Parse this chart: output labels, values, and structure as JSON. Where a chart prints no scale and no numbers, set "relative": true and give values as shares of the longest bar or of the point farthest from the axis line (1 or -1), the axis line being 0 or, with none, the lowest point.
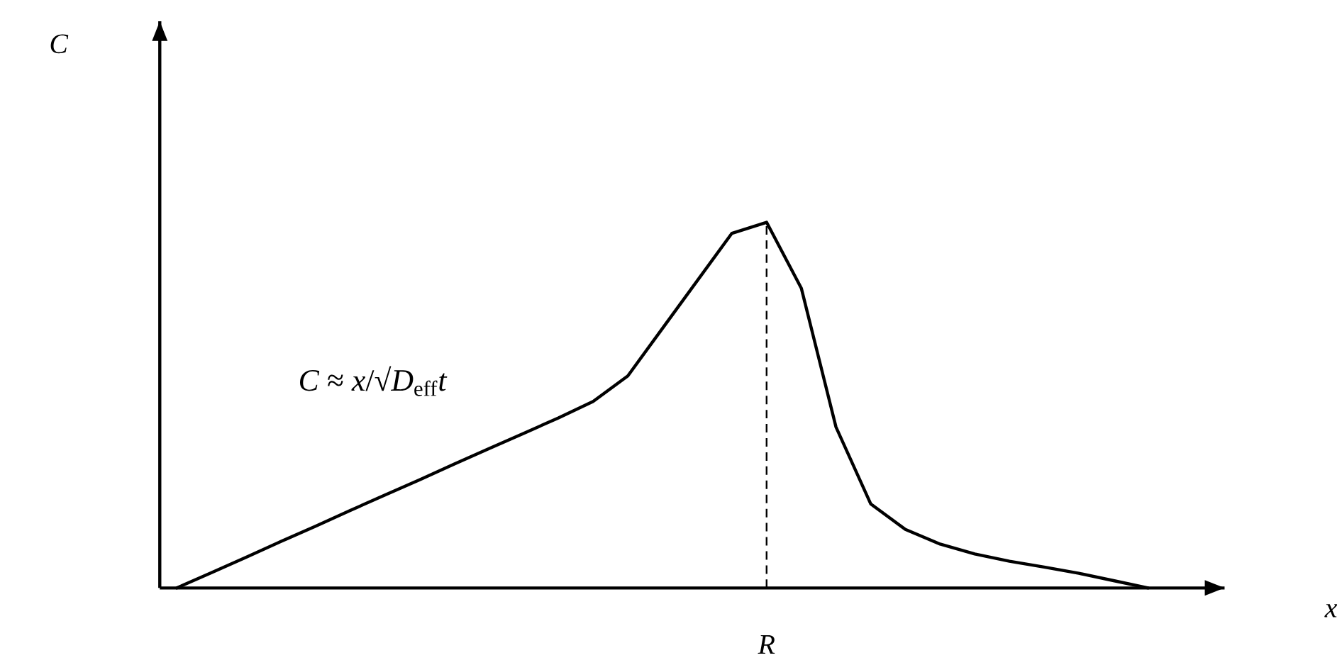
{
  "chart_data": {
    "type": "line",
    "relative": true,
    "categories": [
      null,
      null,
      null,
      null,
      null,
      null,
      null,
      null,
      null,
      null,
      null,
      null,
      null,
      null,
      null,
      null,
      null,
      null,
      null,
      null,
      null,
      null,
      null,
      null,
      null,
      null,
      null,
      null,
      null
    ],
    "series": [
      {
        "color": "#000000",
        "values": [
          0,
          0.042,
          0.084,
          0.127,
          0.169,
          0.212,
          0.254,
          0.296,
          0.339,
          0.381,
          0.423,
          0.465,
          0.51,
          0.58,
          0.71,
          0.84,
          0.97,
          1,
          0.82,
          0.44,
          0.23,
          0.16,
          0.12,
          0.093,
          0.073,
          0.057,
          0.04,
          0.02,
          0
        ]
      }
    ],
    "annotations": [
      "*C* ≈ *x*/√*D*$_{eff}$*t*",
      "R",
      "C",
      "x"
    ]
  }
}
